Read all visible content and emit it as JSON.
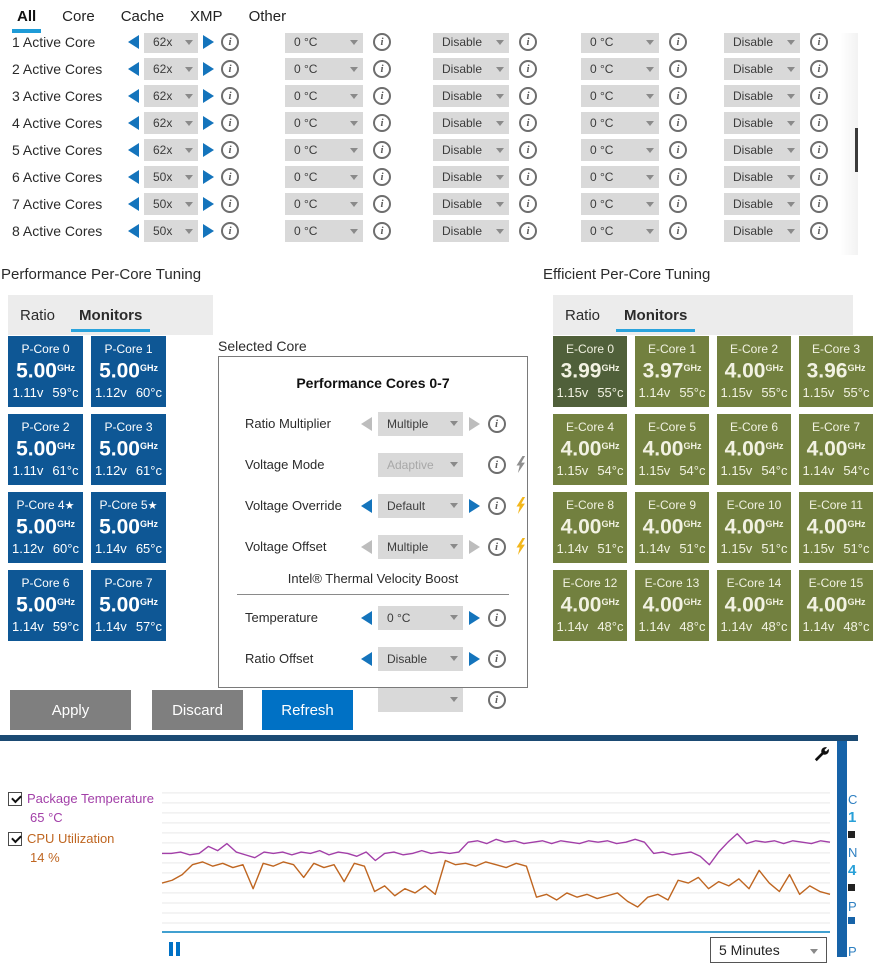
{
  "colors": {
    "accent_blue": "#0071c5",
    "arrow_blue": "#1474bc",
    "p_tile": "#0e5795",
    "e_tile": "#72803f",
    "e_tile_selected": "#50603a",
    "purple_series": "#a23fa8",
    "orange_series": "#bf6621",
    "navy_divider": "#1b4a73"
  },
  "window": {
    "tabs": [
      {
        "label": "All",
        "flags": {
          "active": "true"
        }
      },
      {
        "label": "Core",
        "flags": {
          "active": "false"
        }
      },
      {
        "label": "Cache",
        "flags": {
          "active": "false"
        }
      },
      {
        "label": "XMP",
        "flags": {
          "active": "false"
        }
      },
      {
        "label": "Other",
        "flags": {
          "active": "false"
        }
      }
    ]
  },
  "core_table": {
    "rows": [
      {
        "label": "1 Active Core",
        "ratio": "62x",
        "temp1": "0 °C",
        "mode1": "Disable",
        "temp2": "0 °C",
        "mode2": "Disable"
      },
      {
        "label": "2 Active Cores",
        "ratio": "62x",
        "temp1": "0 °C",
        "mode1": "Disable",
        "temp2": "0 °C",
        "mode2": "Disable"
      },
      {
        "label": "3 Active Cores",
        "ratio": "62x",
        "temp1": "0 °C",
        "mode1": "Disable",
        "temp2": "0 °C",
        "mode2": "Disable"
      },
      {
        "label": "4 Active Cores",
        "ratio": "62x",
        "temp1": "0 °C",
        "mode1": "Disable",
        "temp2": "0 °C",
        "mode2": "Disable"
      },
      {
        "label": "5 Active Cores",
        "ratio": "62x",
        "temp1": "0 °C",
        "mode1": "Disable",
        "temp2": "0 °C",
        "mode2": "Disable"
      },
      {
        "label": "6 Active Cores",
        "ratio": "50x",
        "temp1": "0 °C",
        "mode1": "Disable",
        "temp2": "0 °C",
        "mode2": "Disable"
      },
      {
        "label": "7 Active Cores",
        "ratio": "50x",
        "temp1": "0 °C",
        "mode1": "Disable",
        "temp2": "0 °C",
        "mode2": "Disable"
      },
      {
        "label": "8 Active Cores",
        "ratio": "50x",
        "temp1": "0 °C",
        "mode1": "Disable",
        "temp2": "0 °C",
        "mode2": "Disable"
      }
    ]
  },
  "perf": {
    "heading": "Performance Per-Core Tuning",
    "tab_ratio": "Ratio",
    "tab_monitors": "Monitors",
    "cores": [
      {
        "name": "P-Core 0",
        "star": "",
        "freq": "5.00",
        "unit": "GHz",
        "volt": "1.11v",
        "temp": "59°c",
        "flags": {
          "selected": "false"
        }
      },
      {
        "name": "P-Core 1",
        "star": "",
        "freq": "5.00",
        "unit": "GHz",
        "volt": "1.12v",
        "temp": "60°c",
        "flags": {
          "selected": "false"
        }
      },
      {
        "name": "P-Core 2",
        "star": "",
        "freq": "5.00",
        "unit": "GHz",
        "volt": "1.11v",
        "temp": "61°c",
        "flags": {
          "selected": "false"
        }
      },
      {
        "name": "P-Core 3",
        "star": "",
        "freq": "5.00",
        "unit": "GHz",
        "volt": "1.12v",
        "temp": "61°c",
        "flags": {
          "selected": "false"
        }
      },
      {
        "name": "P-Core 4",
        "star": "★",
        "freq": "5.00",
        "unit": "GHz",
        "volt": "1.12v",
        "temp": "60°c",
        "flags": {
          "selected": "false"
        }
      },
      {
        "name": "P-Core 5",
        "star": "★",
        "freq": "5.00",
        "unit": "GHz",
        "volt": "1.14v",
        "temp": "65°c",
        "flags": {
          "selected": "false"
        }
      },
      {
        "name": "P-Core 6",
        "star": "",
        "freq": "5.00",
        "unit": "GHz",
        "volt": "1.14v",
        "temp": "59°c",
        "flags": {
          "selected": "false"
        }
      },
      {
        "name": "P-Core 7",
        "star": "",
        "freq": "5.00",
        "unit": "GHz",
        "volt": "1.14v",
        "temp": "57°c",
        "flags": {
          "selected": "false"
        }
      }
    ]
  },
  "eff": {
    "heading": "Efficient Per-Core Tuning",
    "tab_ratio": "Ratio",
    "tab_monitors": "Monitors",
    "cores": [
      {
        "name": "E-Core 0",
        "star": "",
        "freq": "3.99",
        "unit": "GHz",
        "volt": "1.15v",
        "temp": "55°c",
        "flags": {
          "selected": "true"
        }
      },
      {
        "name": "E-Core 1",
        "star": "",
        "freq": "3.97",
        "unit": "GHz",
        "volt": "1.14v",
        "temp": "55°c",
        "flags": {
          "selected": "false"
        }
      },
      {
        "name": "E-Core 2",
        "star": "",
        "freq": "4.00",
        "unit": "GHz",
        "volt": "1.15v",
        "temp": "55°c",
        "flags": {
          "selected": "false"
        }
      },
      {
        "name": "E-Core 3",
        "star": "",
        "freq": "3.96",
        "unit": "GHz",
        "volt": "1.15v",
        "temp": "55°c",
        "flags": {
          "selected": "false"
        }
      },
      {
        "name": "E-Core 4",
        "star": "",
        "freq": "4.00",
        "unit": "GHz",
        "volt": "1.15v",
        "temp": "54°c",
        "flags": {
          "selected": "false"
        }
      },
      {
        "name": "E-Core 5",
        "star": "",
        "freq": "4.00",
        "unit": "GHz",
        "volt": "1.15v",
        "temp": "54°c",
        "flags": {
          "selected": "false"
        }
      },
      {
        "name": "E-Core 6",
        "star": "",
        "freq": "4.00",
        "unit": "GHz",
        "volt": "1.15v",
        "temp": "54°c",
        "flags": {
          "selected": "false"
        }
      },
      {
        "name": "E-Core 7",
        "star": "",
        "freq": "4.00",
        "unit": "GHz",
        "volt": "1.14v",
        "temp": "54°c",
        "flags": {
          "selected": "false"
        }
      },
      {
        "name": "E-Core 8",
        "star": "",
        "freq": "4.00",
        "unit": "GHz",
        "volt": "1.14v",
        "temp": "51°c",
        "flags": {
          "selected": "false"
        }
      },
      {
        "name": "E-Core 9",
        "star": "",
        "freq": "4.00",
        "unit": "GHz",
        "volt": "1.14v",
        "temp": "51°c",
        "flags": {
          "selected": "false"
        }
      },
      {
        "name": "E-Core 10",
        "star": "",
        "freq": "4.00",
        "unit": "GHz",
        "volt": "1.15v",
        "temp": "51°c",
        "flags": {
          "selected": "false"
        }
      },
      {
        "name": "E-Core 11",
        "star": "",
        "freq": "4.00",
        "unit": "GHz",
        "volt": "1.15v",
        "temp": "51°c",
        "flags": {
          "selected": "false"
        }
      },
      {
        "name": "E-Core 12",
        "star": "",
        "freq": "4.00",
        "unit": "GHz",
        "volt": "1.14v",
        "temp": "48°c",
        "flags": {
          "selected": "false"
        }
      },
      {
        "name": "E-Core 13",
        "star": "",
        "freq": "4.00",
        "unit": "GHz",
        "volt": "1.14v",
        "temp": "48°c",
        "flags": {
          "selected": "false"
        }
      },
      {
        "name": "E-Core 14",
        "star": "",
        "freq": "4.00",
        "unit": "GHz",
        "volt": "1.14v",
        "temp": "48°c",
        "flags": {
          "selected": "false"
        }
      },
      {
        "name": "E-Core 15",
        "star": "",
        "freq": "4.00",
        "unit": "GHz",
        "volt": "1.14v",
        "temp": "48°c",
        "flags": {
          "selected": "false"
        }
      }
    ]
  },
  "selected_core": {
    "label": "Selected Core",
    "title": "Performance Cores 0-7",
    "rows": [
      {
        "label": "Ratio Multiplier",
        "value": "Multiple",
        "flags": {
          "left": "gray",
          "right": "gray",
          "bolt": "none",
          "disabled": "false"
        }
      },
      {
        "label": "Voltage Mode",
        "value": "Adaptive",
        "flags": {
          "left": "none",
          "right": "none",
          "bolt": "gray",
          "disabled": "true"
        }
      },
      {
        "label": "Voltage Override",
        "value": "Default",
        "flags": {
          "left": "blue",
          "right": "blue",
          "bolt": "yellow",
          "disabled": "false"
        }
      },
      {
        "label": "Voltage Offset",
        "value": "Multiple",
        "flags": {
          "left": "gray",
          "right": "gray",
          "bolt": "yellow",
          "disabled": "false"
        }
      }
    ],
    "divider": "Intel® Thermal Velocity Boost",
    "tvb_rows": [
      {
        "label": "Temperature",
        "value": "0 °C",
        "flags": {
          "left": "blue",
          "right": "blue",
          "bolt": "none",
          "disabled": "false"
        }
      },
      {
        "label": "Ratio Offset",
        "value": "Disable",
        "flags": {
          "left": "blue",
          "right": "blue",
          "bolt": "none",
          "disabled": "false"
        }
      },
      {
        "label": "",
        "value": "",
        "flags": {
          "left": "none",
          "right": "none",
          "bolt": "none",
          "disabled": "false"
        }
      }
    ]
  },
  "actions": {
    "apply": "Apply",
    "discard": "Discard",
    "refresh": "Refresh"
  },
  "monitor": {
    "legend": [
      {
        "label": "Package Temperature",
        "value": "65 °C",
        "checked": true
      },
      {
        "label": "CPU Utilization",
        "value": "14 %",
        "checked": true
      }
    ],
    "timespan": "5 Minutes",
    "right_edge_fragments": [
      "C",
      "1",
      "N",
      "4",
      "P",
      "P"
    ],
    "chart_data": {
      "type": "line",
      "x_window": "5 Minutes",
      "grid": "horizontal",
      "legend_position": "left",
      "series": [
        {
          "name": "Package Temperature",
          "unit": "°C",
          "current": 65,
          "color": "#a23fa8",
          "points_pct": [
            45,
            45,
            44,
            46,
            45,
            40,
            43,
            38,
            44,
            46,
            48,
            44,
            45,
            44,
            46,
            44,
            45,
            43,
            46,
            44,
            45,
            47,
            44,
            50,
            45,
            44,
            46,
            45,
            43,
            45,
            44,
            45,
            44,
            37,
            36,
            38,
            35,
            37,
            36,
            38,
            37,
            36,
            38,
            36,
            37,
            38,
            36,
            37,
            36,
            38,
            37,
            35,
            37,
            45,
            44,
            46,
            45,
            44,
            47,
            53,
            44,
            37,
            31,
            38,
            36,
            37,
            36,
            38,
            36,
            37,
            38,
            36,
            37
          ]
        },
        {
          "name": "CPU Utilization",
          "unit": "%",
          "current": 14,
          "color": "#bf6621",
          "points_pct": [
            66,
            64,
            60,
            53,
            51,
            54,
            52,
            55,
            53,
            70,
            52,
            54,
            51,
            53,
            62,
            52,
            55,
            53,
            65,
            52,
            54,
            72,
            68,
            75,
            70,
            73,
            68,
            74,
            50,
            53,
            52,
            54,
            51,
            53,
            55,
            52,
            54,
            76,
            74,
            78,
            73,
            76,
            74,
            77,
            75,
            73,
            79,
            83,
            76,
            74,
            78,
            64,
            66,
            62,
            70,
            65,
            68,
            63,
            70,
            57,
            66,
            72,
            60,
            74,
            68,
            72,
            74
          ]
        }
      ]
    }
  }
}
